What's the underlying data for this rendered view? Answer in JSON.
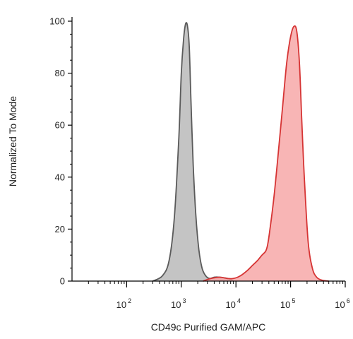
{
  "chart_data": {
    "type": "area",
    "title": "",
    "xlabel": "CD49c Purified GAM/APC",
    "ylabel": "Normalized To Mode",
    "x_scale": "log",
    "xlim": [
      10,
      1000000
    ],
    "ylim": [
      0,
      100
    ],
    "grid": false,
    "legend": "none",
    "y_ticks": [
      {
        "value": 0,
        "label": "0"
      },
      {
        "value": 20,
        "label": "20"
      },
      {
        "value": 40,
        "label": "40"
      },
      {
        "value": 60,
        "label": "60"
      },
      {
        "value": 80,
        "label": "80"
      },
      {
        "value": 100,
        "label": "100"
      }
    ],
    "x_ticks": [
      {
        "value": 100,
        "base": "10",
        "exp": "2"
      },
      {
        "value": 1000,
        "base": "10",
        "exp": "3"
      },
      {
        "value": 10000,
        "base": "10",
        "exp": "4"
      },
      {
        "value": 100000,
        "base": "10",
        "exp": "5"
      },
      {
        "value": 1000000,
        "base": "10",
        "exp": "6"
      }
    ],
    "series": [
      {
        "fill": "#c4c4c4",
        "stroke": "#5a5a5a",
        "x": [
          300,
          450,
          600,
          750,
          900,
          1000,
          1100,
          1200,
          1300,
          1400,
          1500,
          1650,
          1850,
          2100,
          2400,
          2800,
          3300,
          4000,
          5000,
          7000,
          9000
        ],
        "y": [
          0,
          2,
          8,
          25,
          55,
          80,
          93,
          99,
          98,
          90,
          70,
          45,
          25,
          12,
          5,
          2,
          1,
          1.5,
          1.5,
          1,
          0
        ]
      },
      {
        "fill": "#f7a8a8",
        "stroke": "#d63434",
        "x": [
          2500,
          3500,
          5000,
          7000,
          9000,
          12000,
          16000,
          20000,
          25000,
          30000,
          35000,
          38000,
          42000,
          50000,
          60000,
          72000,
          85000,
          100000,
          115000,
          130000,
          145000,
          160000,
          180000,
          210000,
          250000,
          300000,
          380000,
          500000
        ],
        "y": [
          0,
          1,
          1.5,
          1,
          1,
          2,
          4,
          6,
          8,
          10,
          11.5,
          14,
          20,
          33,
          50,
          68,
          84,
          94,
          98,
          96,
          84,
          62,
          38,
          15,
          5,
          1.5,
          0.3,
          0
        ]
      }
    ]
  }
}
